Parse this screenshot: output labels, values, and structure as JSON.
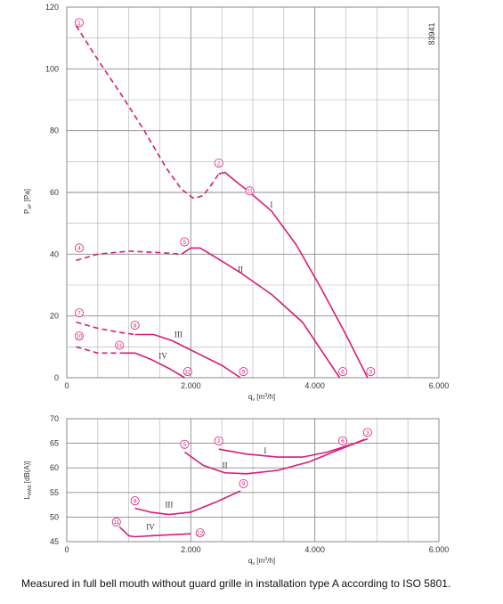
{
  "caption": "Measured in full bell mouth without guard grille in installation type A according to ISO 5801.",
  "code": "83941",
  "colors": {
    "curve": "#d81b76",
    "grid": "#b0b0b0",
    "text": "#333333"
  },
  "chart_data": [
    {
      "type": "line",
      "xlabel": "qv [m³/h]",
      "ylabel": "PsF [Pa]",
      "xlim": [
        0,
        6000
      ],
      "ylim": [
        0,
        120
      ],
      "xticks": [
        0,
        2000,
        4000,
        6000
      ],
      "xtick_labels": [
        "0",
        "2.000",
        "4.000",
        "6.000"
      ],
      "yticks": [
        0,
        20,
        40,
        60,
        80,
        100,
        120
      ],
      "grid": true,
      "series": [
        {
          "name": "I",
          "label_at": [
            3300,
            56
          ],
          "dashed": [
            [
              150,
              114
            ],
            [
              500,
              103
            ],
            [
              900,
              91
            ],
            [
              1250,
              80
            ],
            [
              1600,
              68
            ],
            [
              1850,
              61
            ],
            [
              2050,
              58
            ],
            [
              2200,
              59
            ],
            [
              2350,
              63
            ],
            [
              2450,
              66
            ]
          ],
          "solid": [
            [
              2450,
              66
            ],
            [
              2550,
              66.5
            ],
            [
              2700,
              64
            ],
            [
              2950,
              60
            ],
            [
              3300,
              54
            ],
            [
              3700,
              43
            ],
            [
              4100,
              29
            ],
            [
              4500,
              14
            ],
            [
              4850,
              0
            ]
          ]
        },
        {
          "name": "II",
          "label_at": [
            2800,
            35
          ],
          "dashed": [
            [
              150,
              38
            ],
            [
              500,
              40
            ],
            [
              1000,
              41
            ],
            [
              1500,
              40.5
            ],
            [
              1850,
              40
            ]
          ],
          "solid": [
            [
              1850,
              40
            ],
            [
              2000,
              42
            ],
            [
              2150,
              42
            ],
            [
              2400,
              39
            ],
            [
              2800,
              34
            ],
            [
              3300,
              27
            ],
            [
              3800,
              18
            ],
            [
              4400,
              0
            ]
          ]
        },
        {
          "name": "III",
          "label_at": [
            1800,
            14
          ],
          "dashed": [
            [
              150,
              18
            ],
            [
              500,
              16
            ],
            [
              900,
              14.5
            ],
            [
              1100,
              14
            ]
          ],
          "solid": [
            [
              1100,
              14
            ],
            [
              1400,
              14
            ],
            [
              1700,
              12
            ],
            [
              2100,
              8
            ],
            [
              2500,
              4
            ],
            [
              2800,
              0
            ]
          ]
        },
        {
          "name": "IV",
          "label_at": [
            1550,
            7
          ],
          "dashed": [
            [
              150,
              10
            ],
            [
              500,
              8
            ],
            [
              900,
              8
            ]
          ],
          "solid": [
            [
              900,
              8
            ],
            [
              1100,
              8
            ],
            [
              1350,
              6
            ],
            [
              1650,
              3
            ],
            [
              1900,
              0
            ]
          ]
        }
      ],
      "markers": [
        {
          "label": "1",
          "x": 200,
          "y": 115
        },
        {
          "label": "2",
          "x": 2450,
          "y": 69.5
        },
        {
          "label": "3",
          "x": 4900,
          "y": 2
        },
        {
          "label": "4",
          "x": 200,
          "y": 42
        },
        {
          "label": "5",
          "x": 1900,
          "y": 44
        },
        {
          "label": "6",
          "x": 4450,
          "y": 2
        },
        {
          "label": "7",
          "x": 200,
          "y": 21
        },
        {
          "label": "8",
          "x": 1100,
          "y": 17
        },
        {
          "label": "9",
          "x": 2850,
          "y": 2
        },
        {
          "label": "10",
          "x": 200,
          "y": 13.5
        },
        {
          "label": "11",
          "x": 850,
          "y": 10.5
        },
        {
          "label": "12",
          "x": 1950,
          "y": 2
        },
        {
          "label": "11",
          "x": 2950,
          "y": 60.5
        }
      ]
    },
    {
      "type": "line",
      "xlabel": "qv [m³/h]",
      "ylabel": "LWA6 [dB(A)]",
      "xlim": [
        0,
        6000
      ],
      "ylim": [
        45,
        70
      ],
      "xticks": [
        0,
        2000,
        4000,
        6000
      ],
      "xtick_labels": [
        "0",
        "2.000",
        "4.000",
        "6.000"
      ],
      "yticks": [
        45,
        50,
        55,
        60,
        65,
        70
      ],
      "grid": true,
      "series": [
        {
          "name": "I",
          "label_at": [
            3200,
            63.5
          ],
          "solid": [
            [
              2450,
              63.8
            ],
            [
              2900,
              62.8
            ],
            [
              3400,
              62.2
            ],
            [
              3800,
              62.2
            ],
            [
              4200,
              63.2
            ],
            [
              4600,
              64.8
            ],
            [
              4850,
              65.9
            ]
          ]
        },
        {
          "name": "II",
          "label_at": [
            2550,
            60.5
          ],
          "solid": [
            [
              1900,
              63.2
            ],
            [
              2200,
              60.5
            ],
            [
              2550,
              59
            ],
            [
              2900,
              58.8
            ],
            [
              3400,
              59.5
            ],
            [
              3900,
              61.2
            ],
            [
              4350,
              63.5
            ],
            [
              4800,
              65.8
            ]
          ]
        },
        {
          "name": "III",
          "label_at": [
            1650,
            52.5
          ],
          "solid": [
            [
              1100,
              51.8
            ],
            [
              1350,
              51
            ],
            [
              1650,
              50.5
            ],
            [
              2000,
              51
            ],
            [
              2400,
              53
            ],
            [
              2800,
              55.3
            ]
          ]
        },
        {
          "name": "IV",
          "label_at": [
            1350,
            48
          ],
          "solid": [
            [
              850,
              48
            ],
            [
              1000,
              46.2
            ],
            [
              1100,
              46
            ],
            [
              1350,
              46.2
            ],
            [
              1650,
              46.4
            ],
            [
              2000,
              46.6
            ]
          ]
        }
      ],
      "markers": [
        {
          "label": "5",
          "x": 1900,
          "y": 64.8
        },
        {
          "label": "2",
          "x": 2450,
          "y": 65.5
        },
        {
          "label": "6",
          "x": 4450,
          "y": 65.5
        },
        {
          "label": "3",
          "x": 4850,
          "y": 67.2
        },
        {
          "label": "9",
          "x": 2850,
          "y": 56.8
        },
        {
          "label": "8",
          "x": 1100,
          "y": 53.3
        },
        {
          "label": "11",
          "x": 800,
          "y": 49
        },
        {
          "label": "12",
          "x": 2150,
          "y": 46.8
        }
      ]
    }
  ]
}
